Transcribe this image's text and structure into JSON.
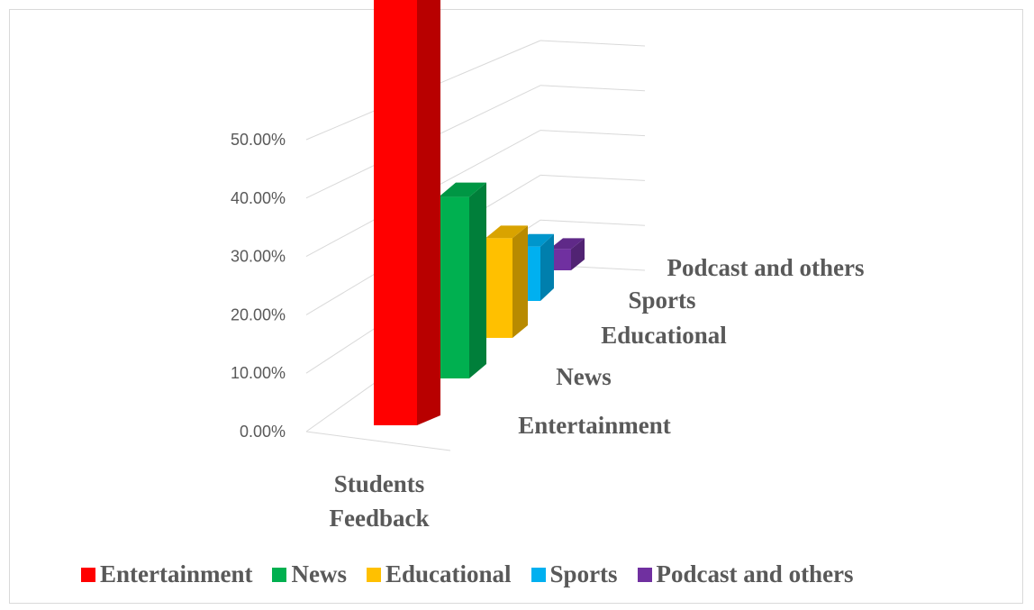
{
  "chart_data": {
    "type": "bar",
    "subtype": "3d-column",
    "categories": [
      "Students Feedback"
    ],
    "series": [
      {
        "name": "Entertainment",
        "values": [
          0.45
        ],
        "color": "#ff0000"
      },
      {
        "name": "News",
        "values": [
          0.19
        ],
        "color": "#00b050"
      },
      {
        "name": "Educational",
        "values": [
          0.14
        ],
        "color": "#ffc000"
      },
      {
        "name": "Sports",
        "values": [
          0.09
        ],
        "color": "#00b0f0"
      },
      {
        "name": "Podcast and others",
        "values": [
          0.04
        ],
        "color": "#7030a0"
      }
    ],
    "y_ticks": [
      "0.00%",
      "10.00%",
      "20.00%",
      "30.00%",
      "40.00%",
      "50.00%"
    ],
    "x_category_label": [
      "Students",
      "Feedback"
    ],
    "depth_labels": [
      "Entertainment",
      "News",
      "Educational",
      "Sports",
      "Podcast and others"
    ],
    "ylim": [
      0,
      0.5
    ],
    "grid": true,
    "legend_position": "bottom"
  }
}
